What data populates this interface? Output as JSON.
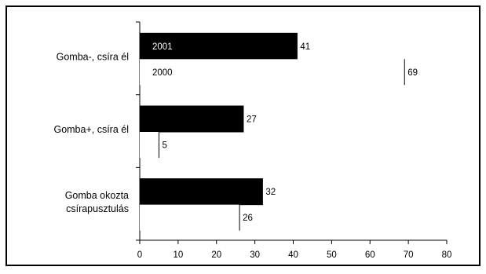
{
  "chart_data": {
    "type": "bar",
    "orientation": "horizontal",
    "categories": [
      [
        "Gomba-, csíra él"
      ],
      [
        "Gomba+, csíra él"
      ],
      [
        "Gomba okozta",
        "csírapusztulás"
      ]
    ],
    "series": [
      {
        "name": "2001",
        "values": [
          41,
          27,
          32
        ],
        "color": "#000000",
        "in_bar_label": true
      },
      {
        "name": "2000",
        "values": [
          69,
          5,
          26
        ],
        "color": "#ffffff",
        "in_bar_label": true
      }
    ],
    "x_ticks": [
      "0",
      "10",
      "20",
      "30",
      "40",
      "50",
      "60",
      "70",
      "80"
    ],
    "xlim": [
      0,
      80
    ],
    "grid": false,
    "legend": "in-bar labels on first category"
  }
}
